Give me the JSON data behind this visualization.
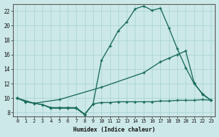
{
  "xlabel": "Humidex (Indice chaleur)",
  "background_color": "#cce8e8",
  "line_color": "#1a6b5a",
  "grid_color": "#aad4d4",
  "xlim": [
    -0.5,
    23.5
  ],
  "ylim": [
    7.5,
    23.0
  ],
  "yticks": [
    8,
    10,
    12,
    14,
    16,
    18,
    20,
    22
  ],
  "xticks": [
    0,
    1,
    2,
    3,
    4,
    5,
    6,
    7,
    8,
    9,
    10,
    11,
    12,
    13,
    14,
    15,
    16,
    17,
    18,
    19,
    20,
    21,
    22,
    23
  ],
  "line_top_x": [
    0,
    1,
    2,
    3,
    4,
    5,
    6,
    7,
    8,
    9,
    10,
    11,
    12,
    13,
    14,
    15,
    16,
    17,
    18,
    19,
    20,
    21,
    22,
    23
  ],
  "line_top_y": [
    10.0,
    9.5,
    9.3,
    9.1,
    8.6,
    8.6,
    8.6,
    8.6,
    7.7,
    9.2,
    15.2,
    17.2,
    19.3,
    20.5,
    22.3,
    22.7,
    22.1,
    22.4,
    19.7,
    16.8,
    14.2,
    12.0,
    10.6,
    9.7
  ],
  "line_mid_x": [
    0,
    2,
    5,
    10,
    15,
    17,
    18,
    19,
    20,
    21,
    22,
    23
  ],
  "line_mid_y": [
    10.0,
    9.3,
    9.8,
    11.5,
    13.5,
    15.0,
    15.5,
    16.0,
    16.5,
    12.1,
    10.5,
    9.7
  ],
  "line_bot_x": [
    0,
    1,
    2,
    3,
    4,
    5,
    6,
    7,
    8,
    9,
    10,
    11,
    12,
    13,
    14,
    15,
    16,
    17,
    18,
    19,
    20,
    21,
    22,
    23
  ],
  "line_bot_y": [
    10.0,
    9.5,
    9.3,
    9.1,
    8.7,
    8.7,
    8.7,
    8.7,
    7.8,
    9.2,
    9.4,
    9.4,
    9.5,
    9.5,
    9.5,
    9.5,
    9.5,
    9.6,
    9.6,
    9.7,
    9.7,
    9.7,
    9.8,
    9.7
  ]
}
